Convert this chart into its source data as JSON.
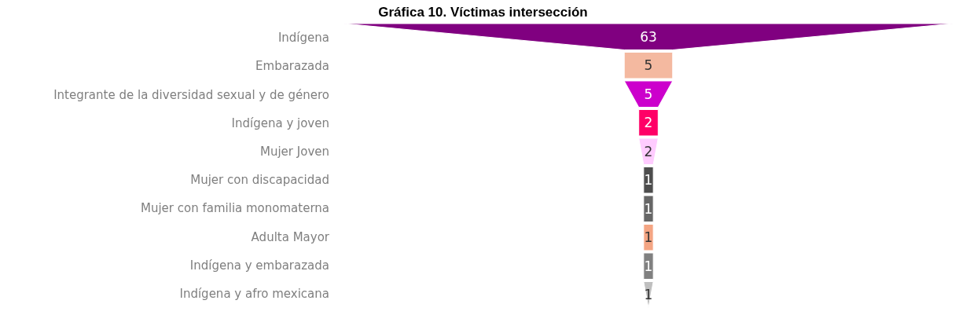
{
  "chart_data": {
    "type": "other",
    "title": "Gráfica 10. Víctimas intersección",
    "categories": [
      "Indígena",
      "Embarazada",
      "Integrante de la diversidad sexual y de género",
      "Indígena y joven",
      "Mujer Joven",
      "Mujer con discapacidad",
      "Mujer con familia monomaterna",
      "Adulta Mayor",
      "Indígena y embarazada",
      "Indígena y afro mexicana"
    ],
    "values": [
      63,
      5,
      5,
      2,
      2,
      1,
      1,
      1,
      1,
      1
    ],
    "colors": [
      "#800080",
      "#f4b9a0",
      "#cc00cc",
      "#ff0066",
      "#ffccff",
      "#4d4d4d",
      "#666666",
      "#f4a583",
      "#808080",
      "#bfbfbf"
    ],
    "data_labels": true
  }
}
